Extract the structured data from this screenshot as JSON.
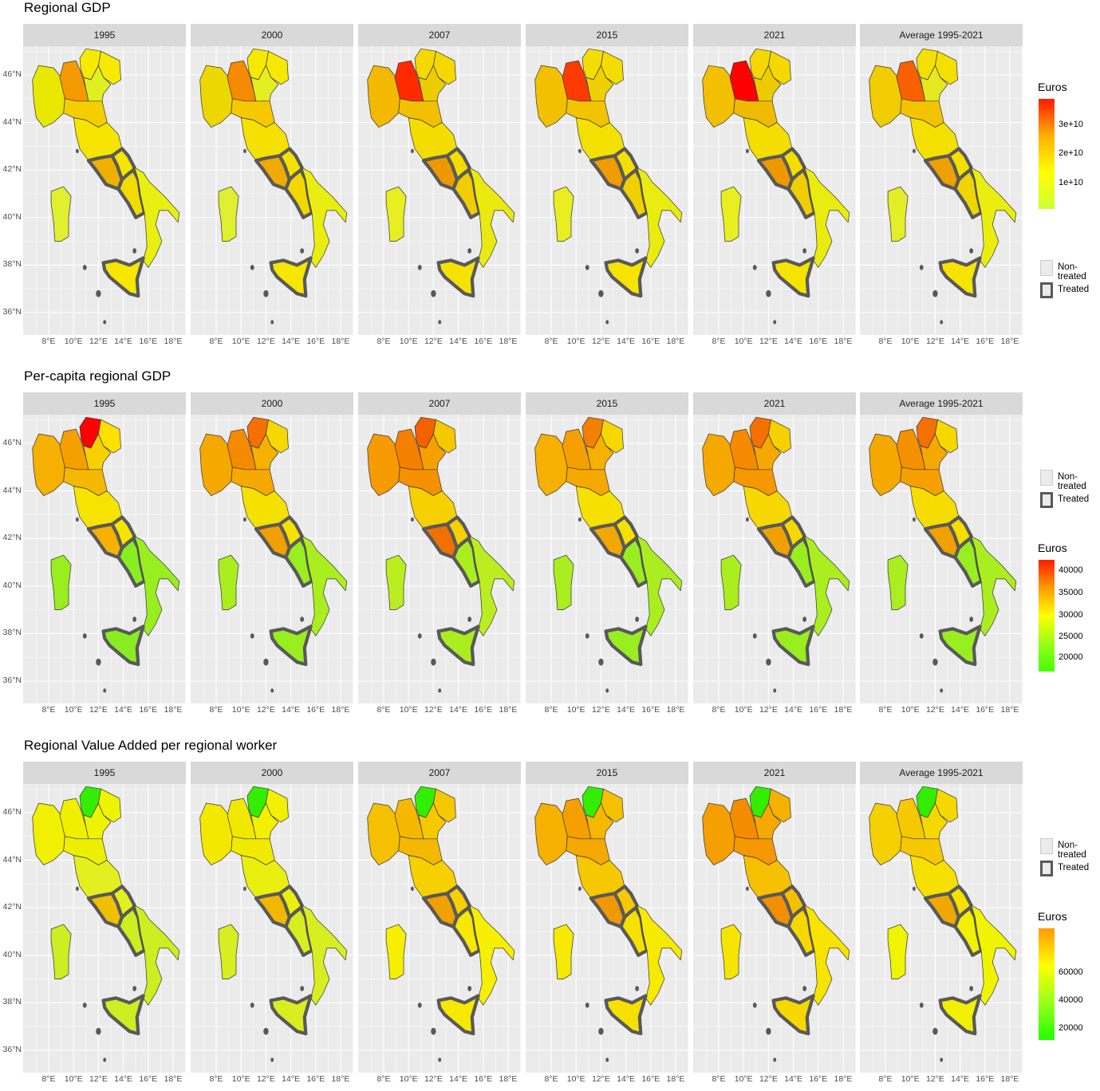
{
  "years": [
    "1995",
    "2000",
    "2007",
    "2015",
    "2021",
    "Average 1995-2021"
  ],
  "y_ticks": [
    "46°N",
    "44°N",
    "42°N",
    "40°N",
    "38°N",
    "36°N"
  ],
  "x_ticks": [
    "8°E",
    "10°E",
    "12°E",
    "14°E",
    "16°E",
    "18°E"
  ],
  "legend_keys": {
    "non_treated": "Non-treated",
    "treated": "Treated"
  },
  "rows": [
    {
      "title": "Regional GDP",
      "legend_title": "Euros",
      "legend_labels": [
        "3e+10",
        "2e+10",
        "1e+10"
      ],
      "legend_colors": [
        "#ff1a00",
        "#ffb000",
        "#ffff00",
        "#ccff33"
      ],
      "panel_colors": [
        {
          "nw": "#e8e800",
          "lom": "#f59a00",
          "ne": "#f7ea00",
          "ven": "#dfef20",
          "emi": "#f5ce00",
          "cen": "#f5e400",
          "laz": "#f0b000",
          "cam": "#f2dc00",
          "south": "#e9ef10",
          "sic": "#f7e600",
          "sar": "#e0ef30"
        },
        {
          "nw": "#ecd800",
          "lom": "#f68a00",
          "ne": "#f6e800",
          "ven": "#e4ee20",
          "emi": "#f5c800",
          "cen": "#f5e000",
          "laz": "#f0aa00",
          "cam": "#f2d800",
          "south": "#eaee10",
          "sic": "#f6e600",
          "sar": "#e0ef30"
        },
        {
          "nw": "#f3b800",
          "lom": "#ff2a00",
          "ne": "#f5d800",
          "ven": "#eccc00",
          "emi": "#f2c000",
          "cen": "#f3dc00",
          "laz": "#ee9800",
          "cam": "#f0cc00",
          "south": "#eaea10",
          "sic": "#f5e200",
          "sar": "#e8ee20"
        },
        {
          "nw": "#f3c000",
          "lom": "#ff3a00",
          "ne": "#f4dc00",
          "ven": "#eed000",
          "emi": "#f2c400",
          "cen": "#f4e000",
          "laz": "#ee9c00",
          "cam": "#f0d000",
          "south": "#eaec10",
          "sic": "#f6e400",
          "sar": "#e8ee20"
        },
        {
          "nw": "#f3c000",
          "lom": "#ff0000",
          "ne": "#f4d800",
          "ven": "#eccc00",
          "emi": "#f0ba00",
          "cen": "#f4de00",
          "laz": "#ee9800",
          "cam": "#f0cc00",
          "south": "#eaec10",
          "sic": "#f6e400",
          "sar": "#e8ee20"
        },
        {
          "nw": "#f0cc00",
          "lom": "#f86000",
          "ne": "#f4e000",
          "ven": "#e4ea20",
          "emi": "#f2c400",
          "cen": "#f4e000",
          "laz": "#eea000",
          "cam": "#f0d400",
          "south": "#eaee10",
          "sic": "#f6e400",
          "sar": "#e4ee28"
        }
      ]
    },
    {
      "title": "Per-capita regional GDP",
      "legend_title": "Euros",
      "legend_labels": [
        "40000",
        "35000",
        "30000",
        "25000",
        "20000"
      ],
      "legend_colors": [
        "#ff1a00",
        "#ff9a00",
        "#ffff00",
        "#99ff1a",
        "#44ff00"
      ],
      "panel_colors": [
        {
          "nw": "#f5b000",
          "lom": "#f5a000",
          "ne": "#ffe000",
          "ven": "#f6d000",
          "emi": "#f5b800",
          "cen": "#f6e400",
          "laz": "#f5b000",
          "cam": "#88ee22",
          "south": "#99ee20",
          "sic": "#88ee22",
          "sar": "#99ee20",
          "taa": "#ff0000"
        },
        {
          "nw": "#f5a800",
          "lom": "#f58a00",
          "ne": "#f6d800",
          "ven": "#f5b000",
          "emi": "#f5a800",
          "cen": "#f6e000",
          "laz": "#f0a000",
          "cam": "#99ee20",
          "south": "#aaee20",
          "sic": "#99ee20",
          "sar": "#aaee20",
          "taa": "#f57000"
        },
        {
          "nw": "#f59a00",
          "lom": "#f58000",
          "ne": "#f6c800",
          "ven": "#f5a000",
          "emi": "#f59000",
          "cen": "#f6d000",
          "laz": "#f07000",
          "cam": "#aaee20",
          "south": "#bbee20",
          "sic": "#aaee20",
          "sar": "#bbee20",
          "taa": "#f56000"
        },
        {
          "nw": "#f5b000",
          "lom": "#f5a000",
          "ne": "#f6d800",
          "ven": "#f5b000",
          "emi": "#f5a800",
          "cen": "#f6e000",
          "laz": "#f0a800",
          "cam": "#99ee20",
          "south": "#aaee20",
          "sic": "#99ee20",
          "sar": "#aaee20",
          "taa": "#f58000"
        },
        {
          "nw": "#f5a800",
          "lom": "#f58a00",
          "ne": "#f6d000",
          "ven": "#f5a800",
          "emi": "#f59800",
          "cen": "#f6d800",
          "laz": "#f0a000",
          "cam": "#99ee20",
          "south": "#aaee20",
          "sic": "#99ee20",
          "sar": "#aaee20",
          "taa": "#f57000"
        },
        {
          "nw": "#f5a800",
          "lom": "#f59000",
          "ne": "#f6d800",
          "ven": "#f5a800",
          "emi": "#f5a000",
          "cen": "#f6dc00",
          "laz": "#f0a000",
          "cam": "#99ee20",
          "south": "#aaee20",
          "sic": "#99ee20",
          "sar": "#aaee20",
          "taa": "#f57000"
        }
      ]
    },
    {
      "title": "Regional Value Added per regional worker",
      "legend_title": "Euros",
      "legend_labels": [
        "60000",
        "40000",
        "20000"
      ],
      "legend_colors": [
        "#ff9a00",
        "#ffff00",
        "#99ff1a",
        "#22ff00"
      ],
      "panel_colors": [
        {
          "nw": "#f0f000",
          "lom": "#eef000",
          "ne": "#eef400",
          "ven": "#eef400",
          "emi": "#ecf000",
          "cen": "#e4ef20",
          "laz": "#f0c000",
          "cam": "#ccee22",
          "south": "#ccee22",
          "sic": "#ccee22",
          "sar": "#ccee22",
          "taa": "#33ee00"
        },
        {
          "nw": "#f4e800",
          "lom": "#f0e800",
          "ne": "#f2f000",
          "ven": "#f2f000",
          "emi": "#f0ea00",
          "cen": "#eaef10",
          "laz": "#f0b800",
          "cam": "#d8ee20",
          "south": "#d8ee20",
          "sic": "#d8ee20",
          "sar": "#d8ee20",
          "taa": "#33ee00"
        },
        {
          "nw": "#f5c000",
          "lom": "#f5b800",
          "ne": "#f5c800",
          "ven": "#f5c800",
          "emi": "#f5b800",
          "cen": "#f6d000",
          "laz": "#f0a000",
          "cam": "#f6e800",
          "south": "#f6f000",
          "sic": "#f6e800",
          "sar": "#f6f000",
          "taa": "#33ee00"
        },
        {
          "nw": "#f5b000",
          "lom": "#f5a000",
          "ne": "#f5c000",
          "ven": "#f5b800",
          "emi": "#f5a800",
          "cen": "#f6c800",
          "laz": "#f09800",
          "cam": "#f6e000",
          "south": "#f6ea00",
          "sic": "#f6e000",
          "sar": "#f6ea00",
          "taa": "#33ee00"
        },
        {
          "nw": "#f5a000",
          "lom": "#f58c00",
          "ne": "#f5b000",
          "ven": "#f5a800",
          "emi": "#f59800",
          "cen": "#f6c000",
          "laz": "#f09000",
          "cam": "#f6d800",
          "south": "#f6e400",
          "sic": "#f6d800",
          "sar": "#f6e400",
          "taa": "#33ee00"
        },
        {
          "nw": "#f5d000",
          "lom": "#f5c800",
          "ne": "#f5d800",
          "ven": "#f5d800",
          "emi": "#f5c800",
          "cen": "#f6e000",
          "laz": "#f0a800",
          "cam": "#f0f000",
          "south": "#f0f400",
          "sic": "#f0f000",
          "sar": "#f0f400",
          "taa": "#33ee00"
        }
      ]
    }
  ]
}
